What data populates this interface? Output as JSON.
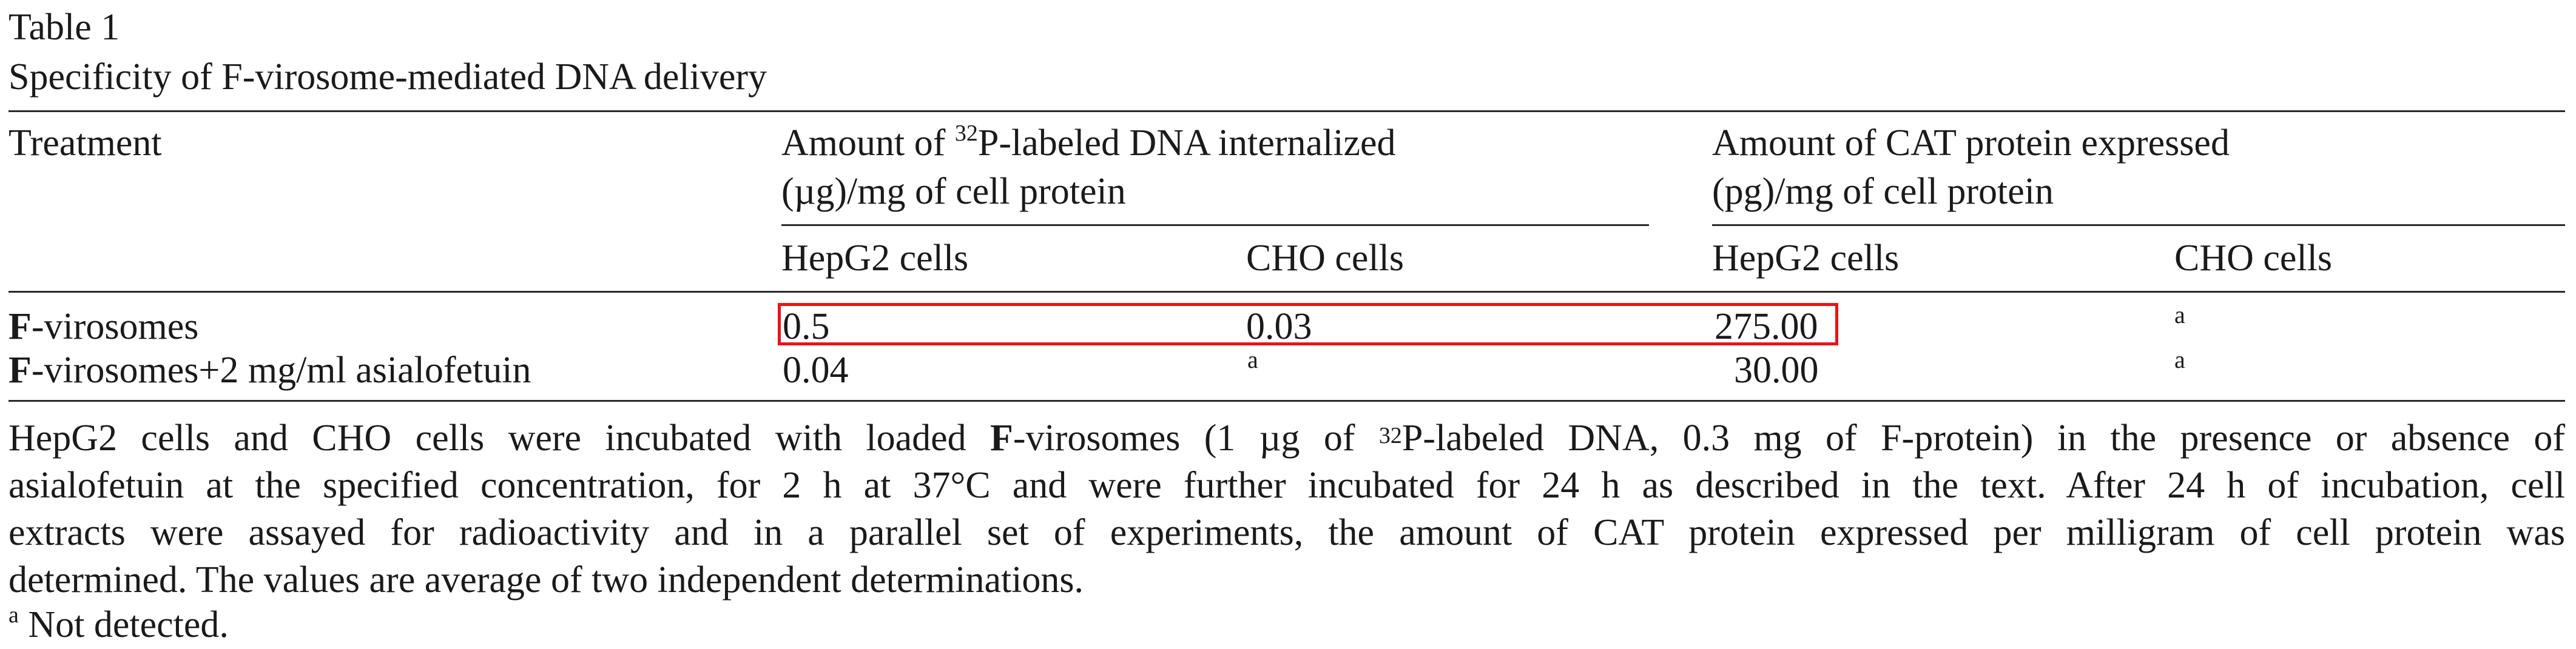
{
  "table_label": "Table 1",
  "table_title": "Specificity of F-virosome-mediated DNA delivery",
  "headers": {
    "treatment": "Treatment",
    "dna_group": {
      "pre": "Amount of ",
      "sup": "32",
      "post": "P-labeled DNA internalized",
      "line2": "(µg)/mg of cell protein"
    },
    "cat_group": {
      "line1": "Amount of CAT protein expressed",
      "line2": "(pg)/mg of cell protein"
    },
    "sub": {
      "dna_hepg2": "HepG2 cells",
      "dna_cho": "CHO cells",
      "cat_hepg2": "HepG2 cells",
      "cat_cho": "CHO cells"
    }
  },
  "rows": [
    {
      "treatment_bold": "F",
      "treatment_rest": "-virosomes",
      "dna_hepg2": "0.5",
      "dna_cho": "0.03",
      "cat_hepg2": "275.00",
      "cat_cho": "a"
    },
    {
      "treatment_bold": "F",
      "treatment_rest": "-virosomes+2 mg/ml asialofetuin",
      "dna_hepg2": "0.04",
      "dna_cho": "a",
      "cat_hepg2": "30.00",
      "cat_cho": "a"
    }
  ],
  "caption": {
    "line1_a": "HepG2 cells and CHO cells were incubated with loaded ",
    "line1_b": "F",
    "line1_c": "-virosomes (1 µg of ",
    "line1_sup": "32",
    "line1_d": "P-labeled DNA, 0.3 mg of F-protein) in the presence or absence of",
    "line2": "asialofetuin at the specified concentration, for 2 h at 37°C and were further incubated for 24 h as described in the text. After 24 h of incubation, cell",
    "line3": "extracts were assayed for radioactivity and in a parallel set of experiments, the amount of CAT protein expressed per milligram of cell protein was",
    "line4": "determined. The values are average of two independent determinations."
  },
  "footnote": {
    "mark": "a",
    "text": " Not detected."
  },
  "colors": {
    "text": "#1a1a1a",
    "highlight_box": "#e8141b",
    "rule": "#2a2a2a"
  }
}
